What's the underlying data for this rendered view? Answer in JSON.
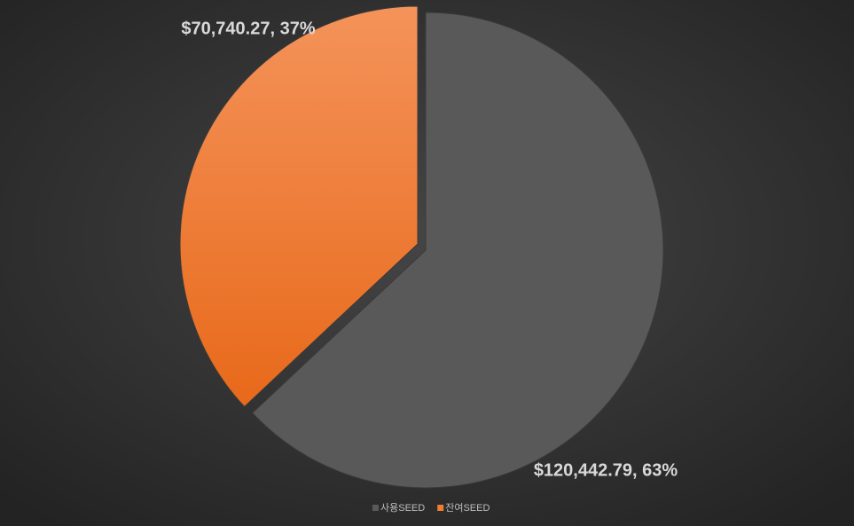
{
  "chart_data": {
    "type": "pie",
    "categories": [
      "사용SEED",
      "잔여SEED"
    ],
    "values": [
      120442.79,
      70740.27
    ],
    "value_labels": [
      "$120,442.79, 63%",
      "$70,740.27, 37%"
    ],
    "colors": [
      "#595959",
      "#ed7d31"
    ],
    "legend": "bottom"
  }
}
